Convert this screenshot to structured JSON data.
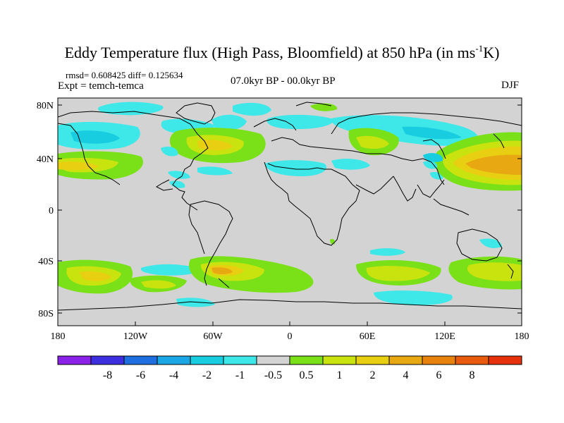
{
  "title": {
    "main": "Eddy Temperature flux (High Pass, Bloomfield) at 850 hPa (in ms",
    "sup": "-1",
    "tail": "K)"
  },
  "stats": "rmsd= 0.608425 diff= 0.125634",
  "expt": "Expt = temch-temca",
  "period": "07.0kyr BP - 00.0kyr BP",
  "season": "DJF",
  "lat_labels": [
    "80N",
    "40N",
    "0",
    "40S",
    "80S"
  ],
  "lon_labels": [
    "180",
    "120W",
    "60W",
    "0",
    "60E",
    "120E",
    "180"
  ],
  "colorbar": {
    "colors": [
      "#8b22e8",
      "#3d2fe0",
      "#1f6fe0",
      "#1ba6e6",
      "#19cde0",
      "#3ee8e8",
      "#d3d3d3",
      "#7ae018",
      "#c9e30f",
      "#e8cf12",
      "#e8a812",
      "#e8820f",
      "#e85a0e",
      "#e6320c"
    ],
    "labels": [
      "-8",
      "-6",
      "-4",
      "-2",
      "-1",
      "-0.5",
      "0.5",
      "1",
      "2",
      "4",
      "6",
      "8"
    ]
  }
}
